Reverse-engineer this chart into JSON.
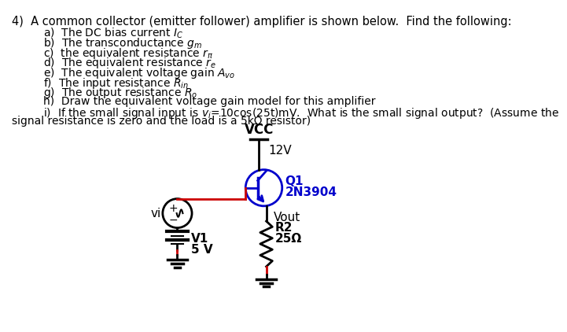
{
  "bg_color": "#ffffff",
  "title_text": "4)  A common collector (emitter follower) amplifier is shown below.  Find the following:",
  "items": [
    "a)  The DC bias current $I_C$",
    "b)  The transconductance $g_m$",
    "c)  the equivalent resistance $r_\\pi$",
    "d)  The equivalent resistance $r_e$",
    "e)  The equivalent voltage gain $A_{vo}$",
    "f)  The input resistance $R_{in}$",
    "g)  The output resistance $R_o$",
    "h)  Draw the equivalent voltage gain model for this amplifier",
    "i)  If the small signal input is $v_i$=10cos(25t)mV.  What is the small signal output?  (Assume the"
  ],
  "last_line": "signal resistance is zero and the load is a 5kΩ resistor)",
  "vcc_label": "VCC",
  "v12_label": "12V",
  "q1_label": "Q1",
  "transistor_label": "2N3904",
  "v1_label": "V1",
  "v5_label": "5 V",
  "vi_label": "vi",
  "vout_label": "Vout",
  "r2_label": "R2",
  "r2_val": "25Ω",
  "transistor_color": "#0000cc",
  "wire_color_red": "#cc0000",
  "wire_color_black": "#000000",
  "text_color": "#000000",
  "blue_text": "#0000cc"
}
